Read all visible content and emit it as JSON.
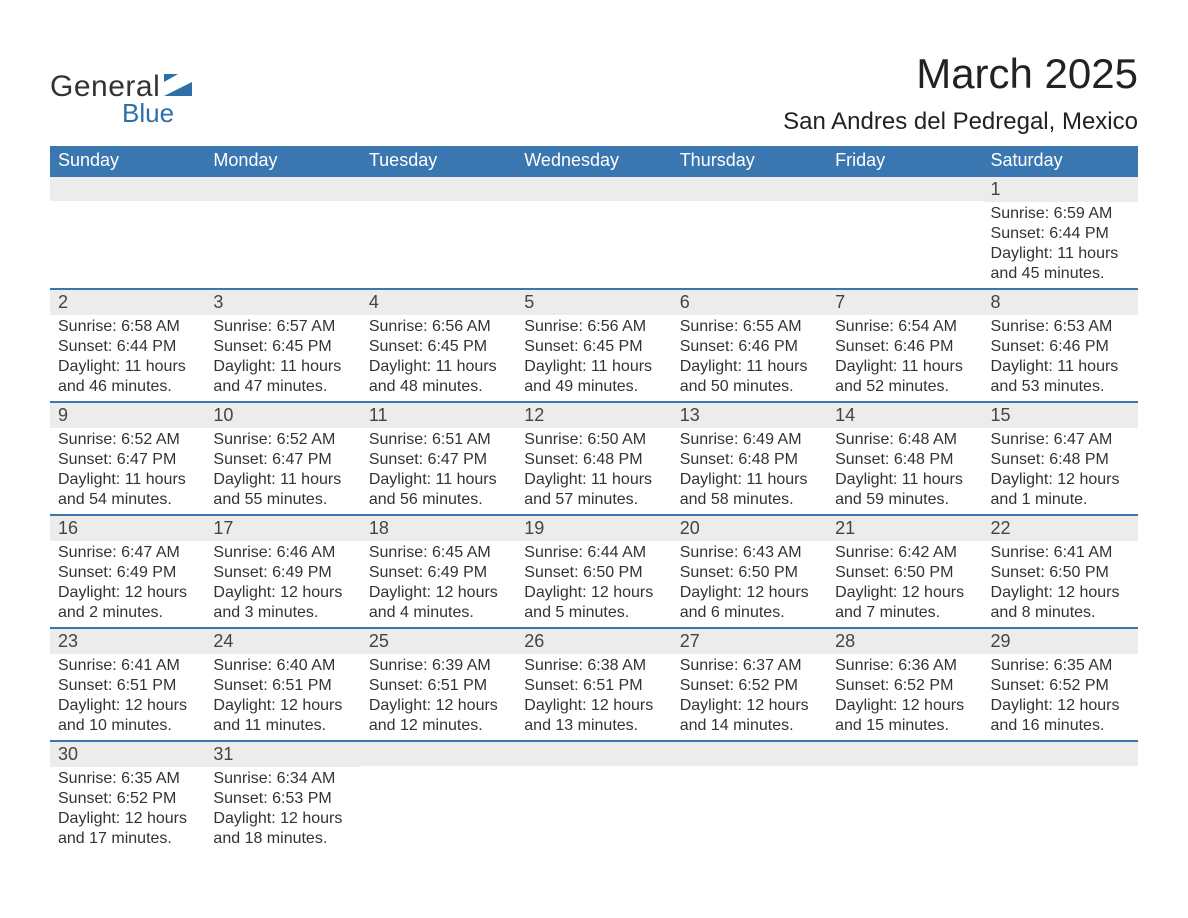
{
  "logo": {
    "text_general": "General",
    "text_blue": "Blue",
    "icon_color": "#2f6fa7"
  },
  "header": {
    "month_title": "March 2025",
    "location": "San Andres del Pedregal, Mexico"
  },
  "colors": {
    "header_bg": "#3a77b0",
    "header_text": "#ffffff",
    "daynum_bg": "#ececec",
    "row_divider": "#3a77b0",
    "text": "#333333",
    "background": "#ffffff"
  },
  "calendar": {
    "day_labels": [
      "Sunday",
      "Monday",
      "Tuesday",
      "Wednesday",
      "Thursday",
      "Friday",
      "Saturday"
    ],
    "weeks": [
      [
        {
          "day": "",
          "lines": []
        },
        {
          "day": "",
          "lines": []
        },
        {
          "day": "",
          "lines": []
        },
        {
          "day": "",
          "lines": []
        },
        {
          "day": "",
          "lines": []
        },
        {
          "day": "",
          "lines": []
        },
        {
          "day": "1",
          "lines": [
            "Sunrise: 6:59 AM",
            "Sunset: 6:44 PM",
            "Daylight: 11 hours and 45 minutes."
          ]
        }
      ],
      [
        {
          "day": "2",
          "lines": [
            "Sunrise: 6:58 AM",
            "Sunset: 6:44 PM",
            "Daylight: 11 hours and 46 minutes."
          ]
        },
        {
          "day": "3",
          "lines": [
            "Sunrise: 6:57 AM",
            "Sunset: 6:45 PM",
            "Daylight: 11 hours and 47 minutes."
          ]
        },
        {
          "day": "4",
          "lines": [
            "Sunrise: 6:56 AM",
            "Sunset: 6:45 PM",
            "Daylight: 11 hours and 48 minutes."
          ]
        },
        {
          "day": "5",
          "lines": [
            "Sunrise: 6:56 AM",
            "Sunset: 6:45 PM",
            "Daylight: 11 hours and 49 minutes."
          ]
        },
        {
          "day": "6",
          "lines": [
            "Sunrise: 6:55 AM",
            "Sunset: 6:46 PM",
            "Daylight: 11 hours and 50 minutes."
          ]
        },
        {
          "day": "7",
          "lines": [
            "Sunrise: 6:54 AM",
            "Sunset: 6:46 PM",
            "Daylight: 11 hours and 52 minutes."
          ]
        },
        {
          "day": "8",
          "lines": [
            "Sunrise: 6:53 AM",
            "Sunset: 6:46 PM",
            "Daylight: 11 hours and 53 minutes."
          ]
        }
      ],
      [
        {
          "day": "9",
          "lines": [
            "Sunrise: 6:52 AM",
            "Sunset: 6:47 PM",
            "Daylight: 11 hours and 54 minutes."
          ]
        },
        {
          "day": "10",
          "lines": [
            "Sunrise: 6:52 AM",
            "Sunset: 6:47 PM",
            "Daylight: 11 hours and 55 minutes."
          ]
        },
        {
          "day": "11",
          "lines": [
            "Sunrise: 6:51 AM",
            "Sunset: 6:47 PM",
            "Daylight: 11 hours and 56 minutes."
          ]
        },
        {
          "day": "12",
          "lines": [
            "Sunrise: 6:50 AM",
            "Sunset: 6:48 PM",
            "Daylight: 11 hours and 57 minutes."
          ]
        },
        {
          "day": "13",
          "lines": [
            "Sunrise: 6:49 AM",
            "Sunset: 6:48 PM",
            "Daylight: 11 hours and 58 minutes."
          ]
        },
        {
          "day": "14",
          "lines": [
            "Sunrise: 6:48 AM",
            "Sunset: 6:48 PM",
            "Daylight: 11 hours and 59 minutes."
          ]
        },
        {
          "day": "15",
          "lines": [
            "Sunrise: 6:47 AM",
            "Sunset: 6:48 PM",
            "Daylight: 12 hours and 1 minute."
          ]
        }
      ],
      [
        {
          "day": "16",
          "lines": [
            "Sunrise: 6:47 AM",
            "Sunset: 6:49 PM",
            "Daylight: 12 hours and 2 minutes."
          ]
        },
        {
          "day": "17",
          "lines": [
            "Sunrise: 6:46 AM",
            "Sunset: 6:49 PM",
            "Daylight: 12 hours and 3 minutes."
          ]
        },
        {
          "day": "18",
          "lines": [
            "Sunrise: 6:45 AM",
            "Sunset: 6:49 PM",
            "Daylight: 12 hours and 4 minutes."
          ]
        },
        {
          "day": "19",
          "lines": [
            "Sunrise: 6:44 AM",
            "Sunset: 6:50 PM",
            "Daylight: 12 hours and 5 minutes."
          ]
        },
        {
          "day": "20",
          "lines": [
            "Sunrise: 6:43 AM",
            "Sunset: 6:50 PM",
            "Daylight: 12 hours and 6 minutes."
          ]
        },
        {
          "day": "21",
          "lines": [
            "Sunrise: 6:42 AM",
            "Sunset: 6:50 PM",
            "Daylight: 12 hours and 7 minutes."
          ]
        },
        {
          "day": "22",
          "lines": [
            "Sunrise: 6:41 AM",
            "Sunset: 6:50 PM",
            "Daylight: 12 hours and 8 minutes."
          ]
        }
      ],
      [
        {
          "day": "23",
          "lines": [
            "Sunrise: 6:41 AM",
            "Sunset: 6:51 PM",
            "Daylight: 12 hours and 10 minutes."
          ]
        },
        {
          "day": "24",
          "lines": [
            "Sunrise: 6:40 AM",
            "Sunset: 6:51 PM",
            "Daylight: 12 hours and 11 minutes."
          ]
        },
        {
          "day": "25",
          "lines": [
            "Sunrise: 6:39 AM",
            "Sunset: 6:51 PM",
            "Daylight: 12 hours and 12 minutes."
          ]
        },
        {
          "day": "26",
          "lines": [
            "Sunrise: 6:38 AM",
            "Sunset: 6:51 PM",
            "Daylight: 12 hours and 13 minutes."
          ]
        },
        {
          "day": "27",
          "lines": [
            "Sunrise: 6:37 AM",
            "Sunset: 6:52 PM",
            "Daylight: 12 hours and 14 minutes."
          ]
        },
        {
          "day": "28",
          "lines": [
            "Sunrise: 6:36 AM",
            "Sunset: 6:52 PM",
            "Daylight: 12 hours and 15 minutes."
          ]
        },
        {
          "day": "29",
          "lines": [
            "Sunrise: 6:35 AM",
            "Sunset: 6:52 PM",
            "Daylight: 12 hours and 16 minutes."
          ]
        }
      ],
      [
        {
          "day": "30",
          "lines": [
            "Sunrise: 6:35 AM",
            "Sunset: 6:52 PM",
            "Daylight: 12 hours and 17 minutes."
          ]
        },
        {
          "day": "31",
          "lines": [
            "Sunrise: 6:34 AM",
            "Sunset: 6:53 PM",
            "Daylight: 12 hours and 18 minutes."
          ]
        },
        {
          "day": "",
          "lines": []
        },
        {
          "day": "",
          "lines": []
        },
        {
          "day": "",
          "lines": []
        },
        {
          "day": "",
          "lines": []
        },
        {
          "day": "",
          "lines": []
        }
      ]
    ]
  }
}
